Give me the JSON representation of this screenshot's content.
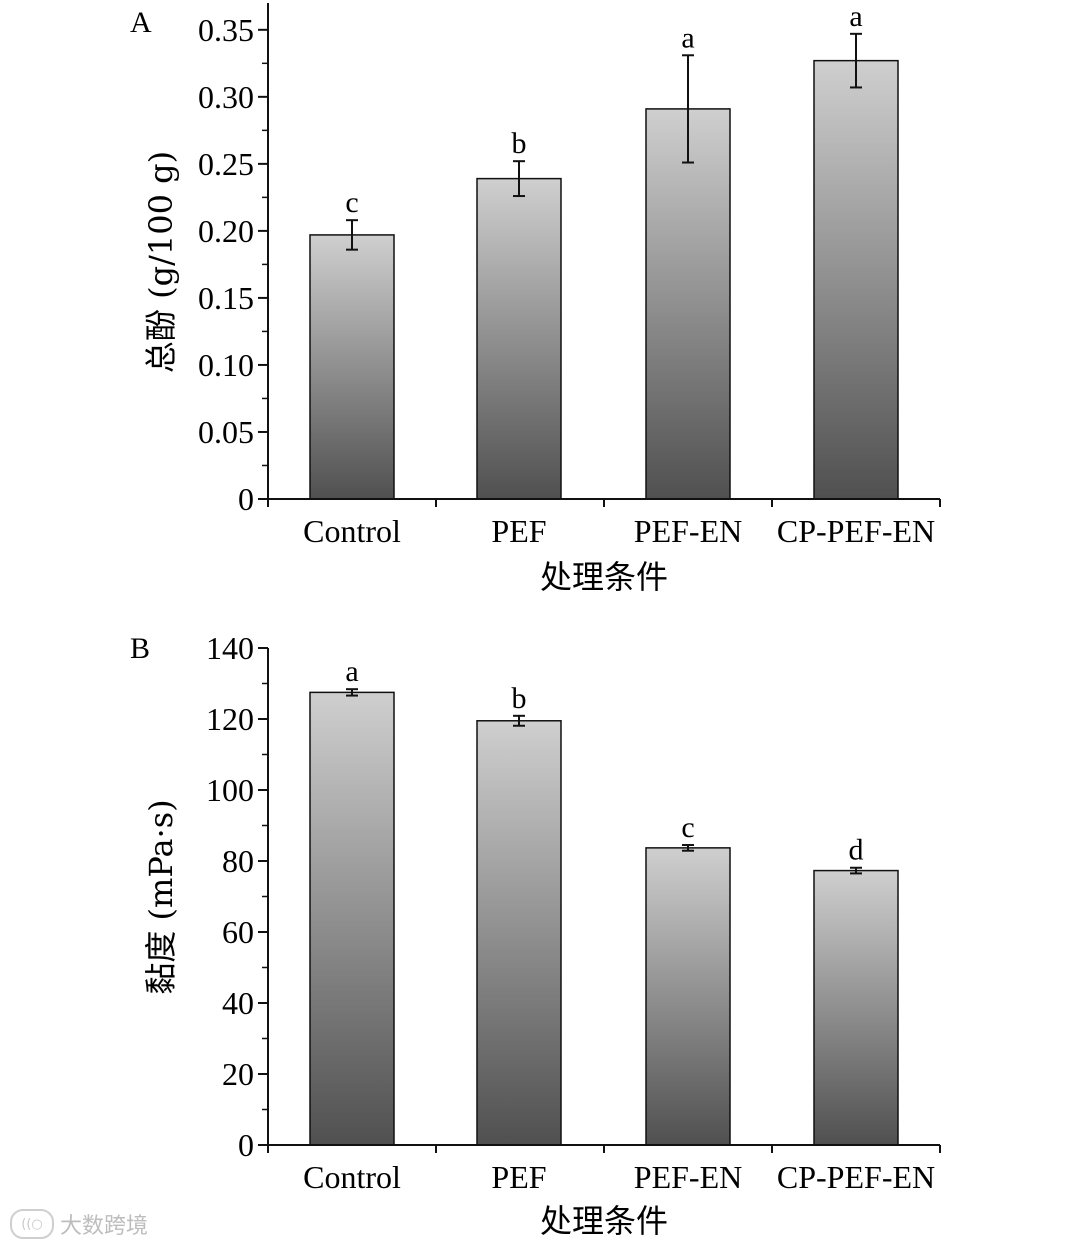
{
  "chart_data": [
    {
      "type": "bar",
      "panel_label": "A",
      "categories": [
        "Control",
        "PEF",
        "PEF-EN",
        "CP-PEF-EN"
      ],
      "values": [
        0.197,
        0.239,
        0.291,
        0.327
      ],
      "errors": [
        0.011,
        0.013,
        0.04,
        0.02
      ],
      "letters": [
        "c",
        "b",
        "a",
        "a"
      ],
      "ylim": [
        0,
        0.37
      ],
      "yticks": [
        0,
        0.05,
        0.1,
        0.15,
        0.2,
        0.25,
        0.3,
        0.35
      ],
      "ytick_labels": [
        "0",
        "0.05",
        "0.10",
        "0.15",
        "0.20",
        "0.25",
        "0.30",
        "0.35"
      ],
      "ylabel": "总酚 (g/100 g)",
      "xlabel": "处理条件"
    },
    {
      "type": "bar",
      "panel_label": "B",
      "categories": [
        "Control",
        "PEF",
        "PEF-EN",
        "CP-PEF-EN"
      ],
      "values": [
        127.5,
        119.5,
        83.7,
        77.3
      ],
      "errors": [
        0.9,
        1.4,
        0.8,
        0.8
      ],
      "letters": [
        "a",
        "b",
        "c",
        "d"
      ],
      "ylim": [
        0,
        140
      ],
      "yticks": [
        0,
        20,
        40,
        60,
        80,
        100,
        120,
        140
      ],
      "ytick_labels": [
        "0",
        "20",
        "40",
        "60",
        "80",
        "100",
        "120",
        "140"
      ],
      "ylabel": "黏度 (mPa·s)",
      "xlabel": "处理条件"
    }
  ],
  "colors": {
    "bar_top": "#cfcfcf",
    "bar_bottom": "#505050",
    "axis": "#111111"
  },
  "watermark": {
    "icon_text": "((○",
    "text": "大数跨境"
  }
}
